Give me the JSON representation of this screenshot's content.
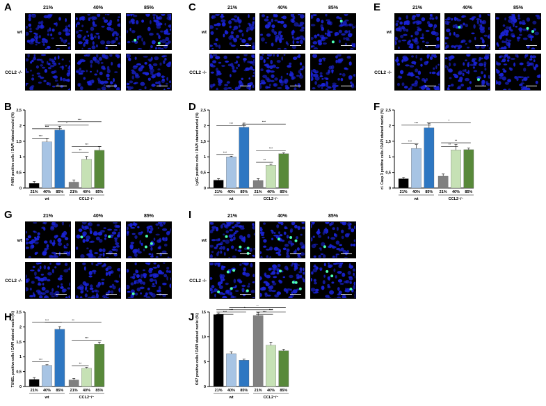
{
  "panel_letters": [
    "A",
    "B",
    "C",
    "D",
    "E",
    "F",
    "G",
    "H",
    "I",
    "J"
  ],
  "micrographs": {
    "column_labels": [
      "21%",
      "40%",
      "85%"
    ],
    "row_labels": [
      "wt",
      "CCL2 -/-"
    ],
    "stain_color": "#1a23d6",
    "positive_color": "#4dffb4"
  },
  "chart_data": [
    {
      "type": "bar",
      "panel": "B",
      "categories": [
        "21%",
        "40%",
        "85%",
        "21%",
        "40%",
        "85%"
      ],
      "groups": [
        "wt",
        "CCL2⁻/⁻"
      ],
      "values": [
        0.15,
        1.48,
        1.86,
        0.19,
        0.92,
        1.21
      ],
      "errors": [
        0.06,
        0.12,
        0.12,
        0.07,
        0.09,
        0.12
      ],
      "colors": [
        "#000000",
        "#a7c4e4",
        "#2e77c2",
        "#808080",
        "#c6e1b5",
        "#58893a"
      ],
      "ylabel": "F4/80 positive cells / DAPI stained nuclei (%)",
      "ylim": [
        0,
        2.5
      ],
      "yticks": [
        "0",
        "0,5",
        "1",
        "1,5",
        "2",
        "2,5"
      ],
      "significance": [
        "***",
        "***",
        "*",
        "***",
        "***",
        "**",
        "***"
      ]
    },
    {
      "type": "bar",
      "panel": "D",
      "categories": [
        "21%",
        "40%",
        "85%",
        "21%",
        "40%",
        "85%"
      ],
      "groups": [
        "wt",
        "CCL2⁻/⁻"
      ],
      "values": [
        0.25,
        1.0,
        1.95,
        0.24,
        0.73,
        1.1
      ],
      "errors": [
        0.05,
        0.02,
        0.13,
        0.06,
        0.03,
        0.03
      ],
      "colors": [
        "#000000",
        "#a7c4e4",
        "#2e77c2",
        "#808080",
        "#c6e1b5",
        "#58893a"
      ],
      "ylabel": "Ly6G positive cells / DAPI stained nuclei (%)",
      "ylim": [
        0,
        2.5
      ],
      "yticks": [
        "0",
        "0,5",
        "1",
        "1,5",
        "2",
        "2,5"
      ],
      "significance": [
        "***",
        "***",
        "***",
        "**",
        "***"
      ]
    },
    {
      "type": "bar",
      "panel": "F",
      "categories": [
        "21%",
        "40%",
        "85%",
        "21%",
        "40%",
        "85%"
      ],
      "groups": [
        "wt",
        "CCL2⁻/⁻"
      ],
      "values": [
        0.3,
        1.27,
        1.93,
        0.38,
        1.22,
        1.23
      ],
      "errors": [
        0.04,
        0.12,
        0.13,
        0.07,
        0.17,
        0.05
      ],
      "colors": [
        "#000000",
        "#a7c4e4",
        "#2e77c2",
        "#808080",
        "#c6e1b5",
        "#58893a"
      ],
      "ylabel": "cl. Casp 3 positive cells / DAPI stained nuclei (%)",
      "ylim": [
        0,
        2.5
      ],
      "yticks": [
        "0",
        "0,5",
        "1",
        "1,5",
        "2",
        "2,5"
      ],
      "significance": [
        "***",
        "***",
        "*",
        "**",
        "**"
      ]
    },
    {
      "type": "bar",
      "panel": "H",
      "categories": [
        "21%",
        "40%",
        "85%",
        "21%",
        "40%",
        "85%"
      ],
      "groups": [
        "wt",
        "CCL2⁻/⁻"
      ],
      "values": [
        0.24,
        0.71,
        1.92,
        0.22,
        0.61,
        1.42
      ],
      "errors": [
        0.06,
        0.02,
        0.09,
        0.05,
        0.03,
        0.07
      ],
      "colors": [
        "#000000",
        "#a7c4e4",
        "#2e77c2",
        "#808080",
        "#c6e1b5",
        "#58893a"
      ],
      "ylabel": "TUNEL positive cells / DAPI stained nuclei (%)",
      "ylim": [
        0,
        2.5
      ],
      "yticks": [
        "0",
        "0,5",
        "1",
        "1,5",
        "2",
        "2,5"
      ],
      "significance": [
        "***",
        "***",
        "**",
        "**",
        "***"
      ]
    },
    {
      "type": "bar",
      "panel": "J",
      "categories": [
        "21%",
        "40%",
        "85%",
        "21%",
        "40%",
        "85%"
      ],
      "groups": [
        "wt",
        "CCL2⁻/⁻"
      ],
      "values": [
        14.5,
        6.6,
        5.3,
        14.3,
        8.3,
        7.2
      ],
      "errors": [
        0.3,
        0.4,
        0.2,
        0.6,
        0.6,
        0.3
      ],
      "colors": [
        "#000000",
        "#a7c4e4",
        "#2e77c2",
        "#808080",
        "#c6e1b5",
        "#58893a"
      ],
      "ylabel": "Ki67 positive cells / DAPI stained nuclei (%)",
      "ylim": [
        0,
        15
      ],
      "yticks": [
        "0",
        "5",
        "10",
        "15"
      ],
      "significance": [
        "***",
        "***",
        "***",
        "***",
        "*",
        "**"
      ]
    }
  ]
}
